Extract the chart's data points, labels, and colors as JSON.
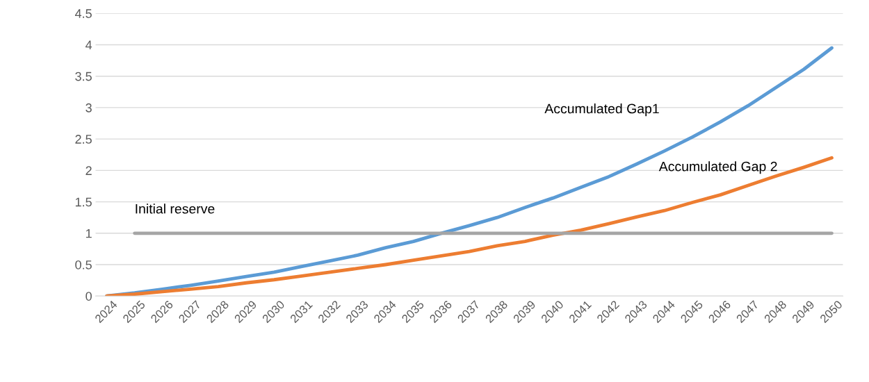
{
  "chart_data": {
    "type": "line",
    "categories": [
      "2024",
      "2025",
      "2026",
      "2027",
      "2028",
      "2029",
      "2030",
      "2031",
      "2032",
      "2033",
      "2034",
      "2035",
      "2036",
      "2037",
      "2038",
      "2039",
      "2040",
      "2041",
      "2042",
      "2043",
      "2044",
      "2045",
      "2046",
      "2047",
      "2048",
      "2049",
      "2050"
    ],
    "series": [
      {
        "name": "Accumulated Gap1",
        "color": "#5b9bd5",
        "values": [
          0,
          0.05,
          0.11,
          0.17,
          0.24,
          0.31,
          0.38,
          0.47,
          0.56,
          0.65,
          0.77,
          0.87,
          1.0,
          1.12,
          1.25,
          1.41,
          1.56,
          1.73,
          1.9,
          2.1,
          2.31,
          2.53,
          2.77,
          3.03,
          3.32,
          3.61,
          3.95
        ]
      },
      {
        "name": "Accumulated Gap 2",
        "color": "#ed7d31",
        "values": [
          0,
          0.03,
          0.07,
          0.11,
          0.15,
          0.21,
          0.26,
          0.32,
          0.38,
          0.44,
          0.5,
          0.57,
          0.64,
          0.71,
          0.8,
          0.87,
          0.97,
          1.05,
          1.15,
          1.26,
          1.36,
          1.49,
          1.61,
          1.76,
          1.91,
          2.05,
          2.2
        ]
      },
      {
        "name": "Initial reserve",
        "color": "#a5a5a5",
        "values": [
          null,
          1,
          1,
          1,
          1,
          1,
          1,
          1,
          1,
          1,
          1,
          1,
          1,
          1,
          1,
          1,
          1,
          1,
          1,
          1,
          1,
          1,
          1,
          1,
          1,
          1,
          1
        ]
      }
    ],
    "ylim": [
      0,
      4.5
    ],
    "yticks": [
      0,
      0.5,
      1,
      1.5,
      2,
      2.5,
      3,
      3.5,
      4,
      4.5
    ],
    "grid": "y",
    "legend": false,
    "marker": "none",
    "line_style": "solid"
  }
}
